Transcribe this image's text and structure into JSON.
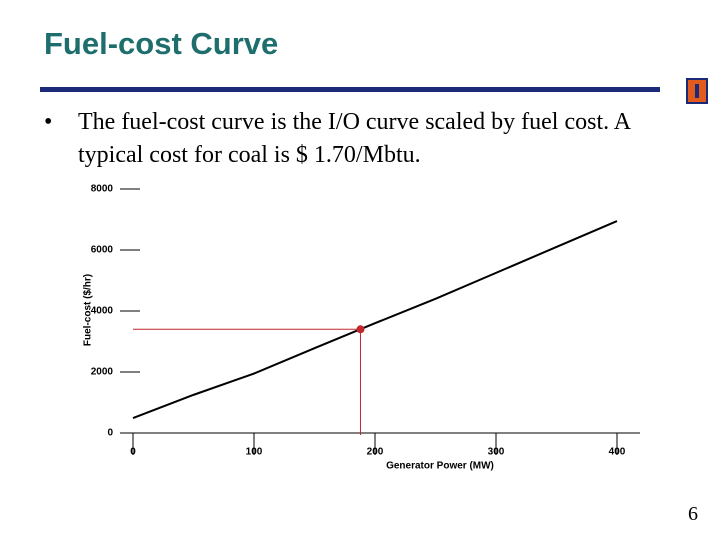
{
  "slide": {
    "title": "Fuel-cost Curve",
    "bullet": "The fuel-cost curve is the I/O curve scaled by fuel cost.  A typical cost for coal is $ 1.70/Mbtu.",
    "page_number": 6
  },
  "chart_data": {
    "type": "line",
    "x_label": "Generator Power (MW)",
    "y_label": "Fuel-cost ($/hr)",
    "x": [
      0,
      50,
      100,
      150,
      200,
      250,
      300,
      350,
      400
    ],
    "series": [
      {
        "color": "#000000",
        "values": [
          490,
          1250,
          1950,
          2780,
          3600,
          4400,
          5250,
          6100,
          6950
        ]
      }
    ],
    "highlight": {
      "x": 188,
      "y": 3400,
      "color": "#c0282d"
    },
    "xlim": [
      0,
      400
    ],
    "xticks": [
      0,
      100,
      200,
      300,
      400
    ],
    "ylim": [
      0,
      8000
    ],
    "yticks": [
      0,
      2000,
      4000,
      6000,
      8000
    ]
  }
}
